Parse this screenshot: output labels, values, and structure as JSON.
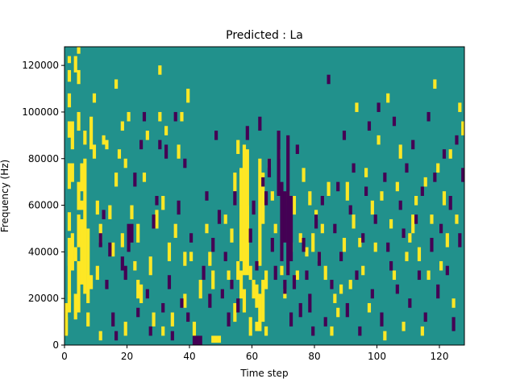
{
  "chart_data": {
    "type": "heatmap",
    "title": "Predicted : La",
    "xlabel": "Time step",
    "ylabel": "Frequency (Hz)",
    "xlim": [
      0,
      128
    ],
    "ylim": [
      0,
      128000
    ],
    "x_ticks": [
      0,
      20,
      40,
      60,
      80,
      100,
      120
    ],
    "y_ticks": [
      0,
      20000,
      40000,
      60000,
      80000,
      100000,
      120000
    ],
    "grid": false,
    "legend": "none",
    "colormap": "viridis (ternary)",
    "colors": {
      "low": "#440154",
      "mid": "#21918c",
      "high": "#fde725"
    },
    "background_level": "mid",
    "time_bins": 128,
    "freq_bins": 128,
    "freq_bin_hz": 1000,
    "cells_high": [
      [
        0,
        12,
        5
      ],
      [
        0,
        4,
        12
      ],
      [
        0,
        5,
        18
      ],
      [
        1,
        14,
        38
      ],
      [
        1,
        18,
        22
      ],
      [
        1,
        34,
        46
      ],
      [
        1,
        49,
        57
      ],
      [
        1,
        67,
        78
      ],
      [
        1,
        89,
        96
      ],
      [
        1,
        102,
        108
      ],
      [
        1,
        113,
        118
      ],
      [
        1,
        121,
        124
      ],
      [
        2,
        84,
        96
      ],
      [
        2,
        32,
        48
      ],
      [
        2,
        70,
        78
      ],
      [
        3,
        11,
        22
      ],
      [
        3,
        36,
        42
      ],
      [
        3,
        117,
        124
      ],
      [
        4,
        14,
        36
      ],
      [
        4,
        42,
        56
      ],
      [
        4,
        58,
        70
      ],
      [
        4,
        92,
        100
      ],
      [
        4,
        112,
        118
      ],
      [
        4,
        125,
        128
      ],
      [
        5,
        26,
        54
      ],
      [
        5,
        58,
        62
      ],
      [
        5,
        66,
        78
      ],
      [
        6,
        22,
        80
      ],
      [
        6,
        86,
        92
      ],
      [
        7,
        18,
        50
      ],
      [
        7,
        8,
        14
      ],
      [
        8,
        84,
        98
      ],
      [
        8,
        24,
        30
      ],
      [
        9,
        104,
        108
      ],
      [
        9,
        80,
        86
      ],
      [
        10,
        56,
        62
      ],
      [
        10,
        28,
        34
      ],
      [
        11,
        2,
        6
      ],
      [
        11,
        44,
        52
      ],
      [
        12,
        86,
        90
      ],
      [
        13,
        84,
        88
      ],
      [
        14,
        54,
        60
      ],
      [
        15,
        38,
        44
      ],
      [
        16,
        110,
        114
      ],
      [
        16,
        68,
        74
      ],
      [
        17,
        80,
        84
      ],
      [
        18,
        42,
        48
      ],
      [
        18,
        92,
        96
      ],
      [
        19,
        4,
        10
      ],
      [
        19,
        76,
        80
      ],
      [
        20,
        96,
        100
      ],
      [
        21,
        54,
        60
      ],
      [
        22,
        32,
        36
      ],
      [
        23,
        44,
        52
      ],
      [
        23,
        20,
        28
      ],
      [
        24,
        18,
        26
      ],
      [
        25,
        70,
        74
      ],
      [
        26,
        88,
        92
      ],
      [
        27,
        30,
        38
      ],
      [
        28,
        8,
        14
      ],
      [
        29,
        50,
        58
      ],
      [
        30,
        116,
        120
      ],
      [
        30,
        96,
        100
      ],
      [
        31,
        4,
        8
      ],
      [
        31,
        58,
        64
      ],
      [
        32,
        90,
        94
      ],
      [
        33,
        36,
        44
      ],
      [
        34,
        8,
        14
      ],
      [
        35,
        46,
        52
      ],
      [
        36,
        80,
        86
      ],
      [
        37,
        96,
        100
      ],
      [
        38,
        34,
        40
      ],
      [
        38,
        16,
        22
      ],
      [
        39,
        104,
        110
      ],
      [
        40,
        36,
        40
      ],
      [
        41,
        4,
        10
      ],
      [
        43,
        20,
        28
      ],
      [
        45,
        48,
        52
      ],
      [
        46,
        34,
        40
      ],
      [
        47,
        24,
        32
      ],
      [
        47,
        1,
        4
      ],
      [
        48,
        1,
        4
      ],
      [
        49,
        1,
        4
      ],
      [
        51,
        52,
        56
      ],
      [
        52,
        28,
        32
      ],
      [
        53,
        44,
        50
      ],
      [
        54,
        66,
        74
      ],
      [
        54,
        10,
        18
      ],
      [
        55,
        28,
        36
      ],
      [
        55,
        82,
        88
      ],
      [
        56,
        36,
        76
      ],
      [
        56,
        54,
        60
      ],
      [
        56,
        20,
        32
      ],
      [
        57,
        30,
        86
      ],
      [
        57,
        14,
        24
      ],
      [
        58,
        30,
        84
      ],
      [
        58,
        46,
        60
      ],
      [
        59,
        28,
        34
      ],
      [
        59,
        4,
        12
      ],
      [
        60,
        20,
        28
      ],
      [
        61,
        6,
        10
      ],
      [
        61,
        16,
        26
      ],
      [
        62,
        34,
        80
      ],
      [
        62,
        6,
        22
      ],
      [
        63,
        52,
        74
      ],
      [
        63,
        10,
        28
      ],
      [
        64,
        4,
        8
      ],
      [
        64,
        24,
        32
      ],
      [
        65,
        76,
        80
      ],
      [
        66,
        62,
        66
      ],
      [
        67,
        48,
        52
      ],
      [
        68,
        80,
        84
      ],
      [
        69,
        30,
        34
      ],
      [
        70,
        20,
        24
      ],
      [
        71,
        60,
        66
      ],
      [
        72,
        40,
        44
      ],
      [
        73,
        56,
        64
      ],
      [
        74,
        28,
        32
      ],
      [
        75,
        44,
        48
      ],
      [
        76,
        70,
        76
      ],
      [
        77,
        38,
        42
      ],
      [
        78,
        60,
        66
      ],
      [
        79,
        40,
        48
      ],
      [
        80,
        54,
        58
      ],
      [
        81,
        36,
        40
      ],
      [
        82,
        48,
        52
      ],
      [
        83,
        28,
        34
      ],
      [
        84,
        64,
        70
      ],
      [
        85,
        4,
        8
      ],
      [
        86,
        18,
        22
      ],
      [
        87,
        12,
        16
      ],
      [
        88,
        22,
        26
      ],
      [
        89,
        40,
        46
      ],
      [
        90,
        62,
        70
      ],
      [
        91,
        24,
        28
      ],
      [
        92,
        50,
        56
      ],
      [
        93,
        100,
        104
      ],
      [
        94,
        42,
        46
      ],
      [
        95,
        30,
        34
      ],
      [
        96,
        72,
        76
      ],
      [
        97,
        14,
        18
      ],
      [
        98,
        56,
        62
      ],
      [
        99,
        40,
        44
      ],
      [
        100,
        86,
        90
      ],
      [
        101,
        62,
        66
      ],
      [
        102,
        2,
        6
      ],
      [
        103,
        104,
        108
      ],
      [
        104,
        50,
        54
      ],
      [
        105,
        28,
        32
      ],
      [
        106,
        66,
        70
      ],
      [
        107,
        80,
        86
      ],
      [
        108,
        6,
        10
      ],
      [
        109,
        36,
        40
      ],
      [
        110,
        44,
        48
      ],
      [
        111,
        48,
        56
      ],
      [
        112,
        60,
        64
      ],
      [
        113,
        36,
        42
      ],
      [
        114,
        4,
        8
      ],
      [
        115,
        68,
        72
      ],
      [
        116,
        28,
        32
      ],
      [
        117,
        52,
        56
      ],
      [
        118,
        110,
        114
      ],
      [
        119,
        74,
        78
      ],
      [
        120,
        32,
        36
      ],
      [
        121,
        60,
        66
      ],
      [
        122,
        42,
        48
      ],
      [
        123,
        80,
        84
      ],
      [
        124,
        16,
        20
      ],
      [
        125,
        52,
        56
      ],
      [
        126,
        100,
        104
      ],
      [
        127,
        90,
        96
      ]
    ],
    "cells_low": [
      [
        11,
        42,
        48
      ],
      [
        12,
        54,
        58
      ],
      [
        13,
        24,
        28
      ],
      [
        14,
        38,
        44
      ],
      [
        15,
        8,
        14
      ],
      [
        16,
        2,
        6
      ],
      [
        18,
        32,
        38
      ],
      [
        19,
        28,
        34
      ],
      [
        20,
        40,
        52
      ],
      [
        21,
        44,
        52
      ],
      [
        22,
        68,
        74
      ],
      [
        23,
        12,
        16
      ],
      [
        24,
        84,
        88
      ],
      [
        25,
        96,
        100
      ],
      [
        26,
        20,
        24
      ],
      [
        27,
        4,
        8
      ],
      [
        28,
        50,
        56
      ],
      [
        29,
        60,
        64
      ],
      [
        30,
        84,
        88
      ],
      [
        31,
        14,
        18
      ],
      [
        32,
        80,
        86
      ],
      [
        33,
        24,
        30
      ],
      [
        34,
        2,
        6
      ],
      [
        35,
        96,
        100
      ],
      [
        36,
        56,
        62
      ],
      [
        37,
        16,
        20
      ],
      [
        38,
        76,
        80
      ],
      [
        39,
        10,
        14
      ],
      [
        40,
        44,
        48
      ],
      [
        41,
        0,
        4
      ],
      [
        42,
        0,
        4
      ],
      [
        43,
        0,
        4
      ],
      [
        44,
        28,
        34
      ],
      [
        45,
        62,
        66
      ],
      [
        46,
        16,
        22
      ],
      [
        47,
        40,
        46
      ],
      [
        48,
        88,
        92
      ],
      [
        49,
        52,
        58
      ],
      [
        50,
        20,
        24
      ],
      [
        51,
        36,
        40
      ],
      [
        52,
        8,
        14
      ],
      [
        53,
        24,
        28
      ],
      [
        54,
        60,
        66
      ],
      [
        55,
        14,
        20
      ],
      [
        58,
        88,
        94
      ],
      [
        59,
        44,
        50
      ],
      [
        60,
        56,
        62
      ],
      [
        61,
        32,
        36
      ],
      [
        62,
        92,
        98
      ],
      [
        63,
        68,
        72
      ],
      [
        64,
        60,
        66
      ],
      [
        65,
        72,
        80
      ],
      [
        66,
        40,
        46
      ],
      [
        67,
        28,
        34
      ],
      [
        68,
        64,
        92
      ],
      [
        69,
        36,
        70
      ],
      [
        70,
        22,
        28
      ],
      [
        70,
        44,
        66
      ],
      [
        71,
        30,
        90
      ],
      [
        72,
        36,
        64
      ],
      [
        72,
        8,
        14
      ],
      [
        73,
        24,
        30
      ],
      [
        74,
        82,
        86
      ],
      [
        75,
        12,
        18
      ],
      [
        76,
        40,
        46
      ],
      [
        77,
        28,
        32
      ],
      [
        78,
        14,
        22
      ],
      [
        79,
        4,
        8
      ],
      [
        80,
        50,
        56
      ],
      [
        81,
        34,
        40
      ],
      [
        82,
        60,
        64
      ],
      [
        83,
        8,
        12
      ],
      [
        84,
        112,
        116
      ],
      [
        85,
        24,
        28
      ],
      [
        86,
        48,
        52
      ],
      [
        87,
        66,
        70
      ],
      [
        88,
        36,
        40
      ],
      [
        89,
        88,
        92
      ],
      [
        90,
        12,
        18
      ],
      [
        91,
        56,
        60
      ],
      [
        92,
        74,
        78
      ],
      [
        93,
        28,
        32
      ],
      [
        94,
        4,
        8
      ],
      [
        95,
        44,
        48
      ],
      [
        96,
        64,
        68
      ],
      [
        97,
        92,
        96
      ],
      [
        98,
        20,
        24
      ],
      [
        99,
        52,
        56
      ],
      [
        100,
        100,
        104
      ],
      [
        101,
        8,
        14
      ],
      [
        102,
        70,
        74
      ],
      [
        103,
        40,
        44
      ],
      [
        104,
        32,
        36
      ],
      [
        105,
        94,
        98
      ],
      [
        106,
        22,
        26
      ],
      [
        107,
        58,
        62
      ],
      [
        108,
        46,
        50
      ],
      [
        109,
        74,
        78
      ],
      [
        110,
        16,
        20
      ],
      [
        111,
        84,
        88
      ],
      [
        112,
        52,
        56
      ],
      [
        113,
        28,
        32
      ],
      [
        114,
        64,
        68
      ],
      [
        115,
        10,
        14
      ],
      [
        116,
        96,
        100
      ],
      [
        117,
        40,
        46
      ],
      [
        118,
        70,
        74
      ],
      [
        119,
        20,
        26
      ],
      [
        120,
        48,
        52
      ],
      [
        121,
        80,
        84
      ],
      [
        122,
        30,
        34
      ],
      [
        123,
        58,
        64
      ],
      [
        124,
        6,
        12
      ],
      [
        125,
        86,
        90
      ],
      [
        126,
        42,
        48
      ],
      [
        127,
        70,
        76
      ]
    ]
  }
}
